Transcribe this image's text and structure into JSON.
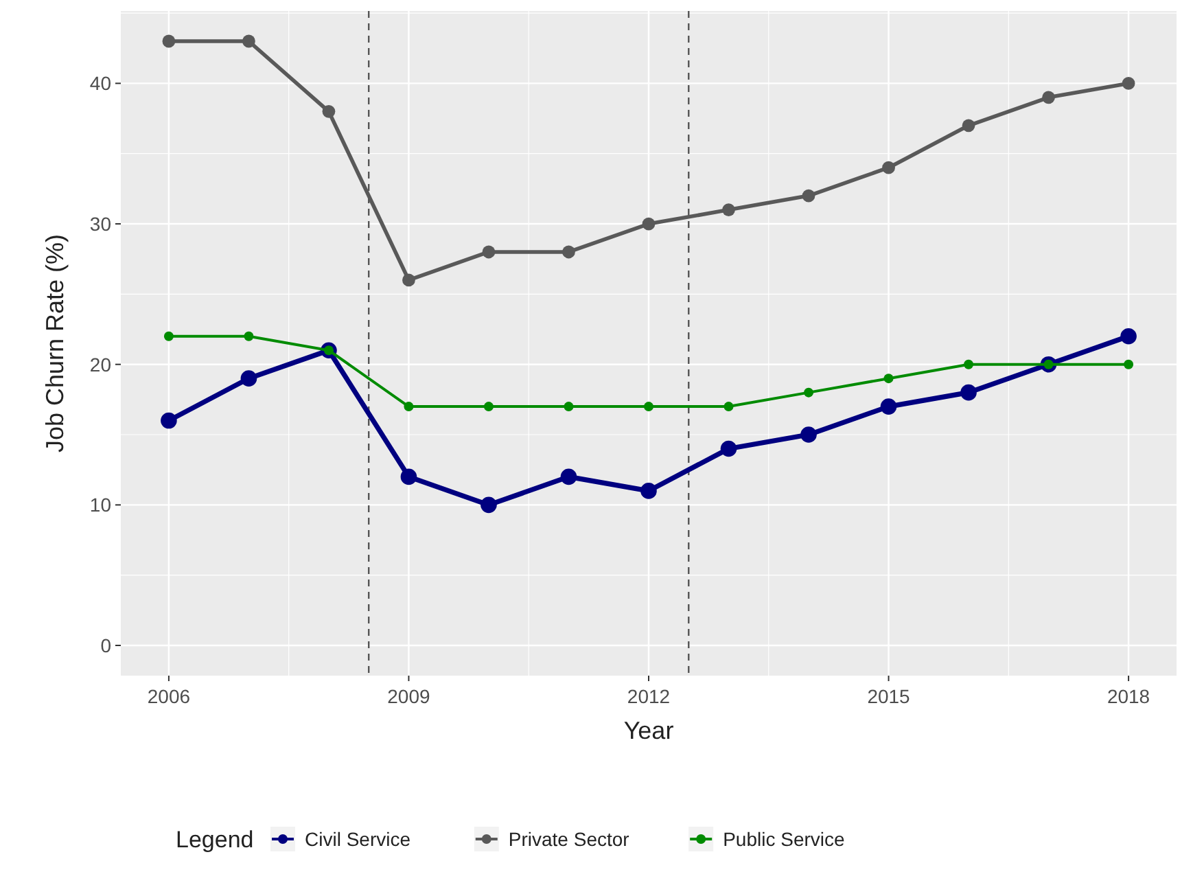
{
  "chart_data": {
    "type": "line",
    "xlabel": "Year",
    "ylabel": "Job Churn Rate (%)",
    "legend_title": "Legend",
    "legend": "bottom",
    "grid": true,
    "marker": "circle",
    "line_style": "solid",
    "x": [
      2006,
      2007,
      2008,
      2009,
      2010,
      2011,
      2012,
      2013,
      2014,
      2015,
      2016,
      2017,
      2018
    ],
    "xlim": [
      2005.4,
      2018.6
    ],
    "xticks": [
      2006,
      2009,
      2012,
      2015,
      2018
    ],
    "ylim": [
      -2.15,
      45.15
    ],
    "yticks": [
      0,
      10,
      20,
      30,
      40
    ],
    "series": [
      {
        "name": "Civil Service",
        "color": "#000080",
        "values": [
          16,
          19,
          21,
          12,
          10,
          12,
          11,
          14,
          15,
          17,
          18,
          20,
          22
        ]
      },
      {
        "name": "Private Sector",
        "color": "#595959",
        "values": [
          43,
          43,
          38,
          26,
          28,
          28,
          30,
          31,
          32,
          34,
          37,
          39,
          40
        ]
      },
      {
        "name": "Public Service",
        "color": "#008b00",
        "values": [
          22,
          22,
          21,
          17,
          17,
          17,
          17,
          17,
          18,
          19,
          20,
          20,
          20
        ]
      }
    ],
    "ref_lines": [
      {
        "axis": "x",
        "value": 2008.5,
        "color": "#555555",
        "line_style": "dashed"
      },
      {
        "axis": "x",
        "value": 2012.5,
        "color": "#555555",
        "line_style": "dashed"
      }
    ]
  }
}
